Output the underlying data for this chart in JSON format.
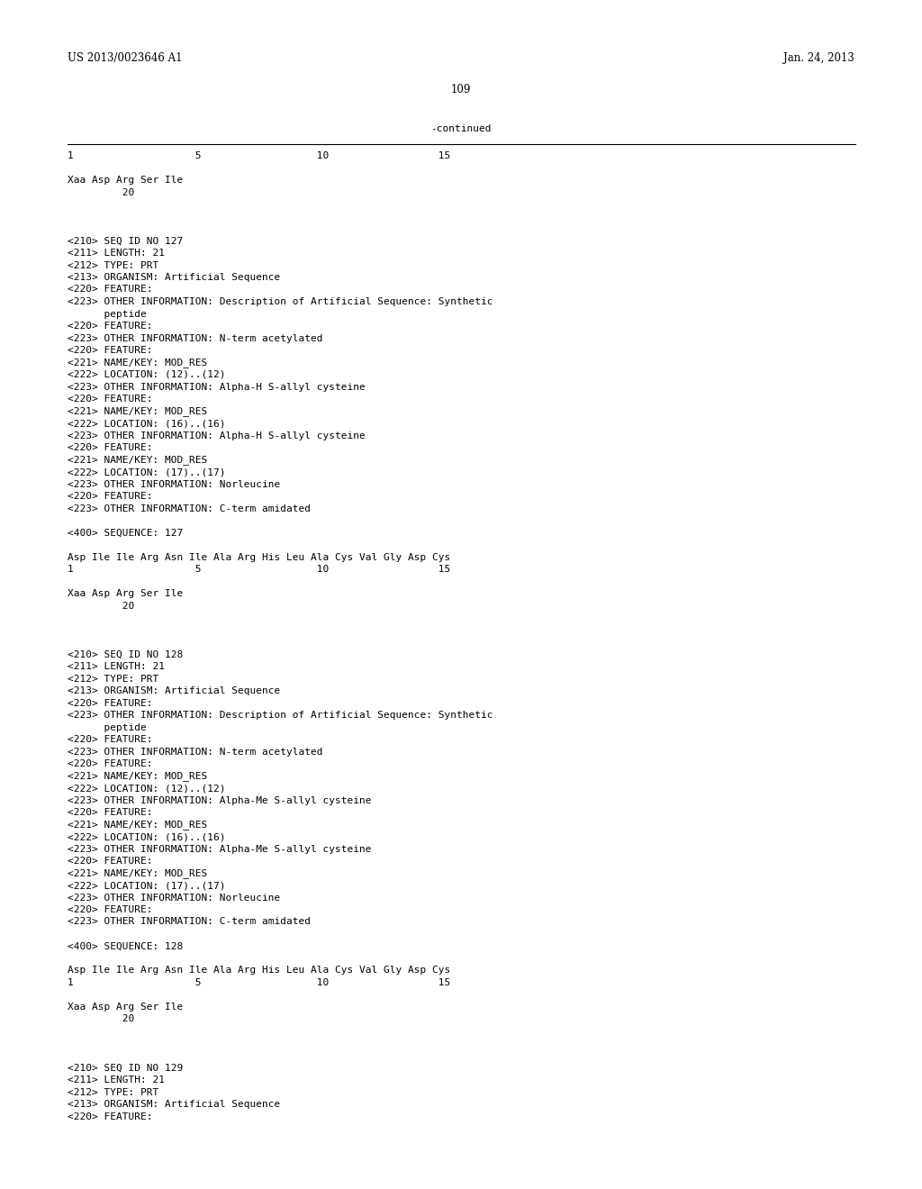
{
  "background_color": "#ffffff",
  "header_left": "US 2013/0023646 A1",
  "header_right": "Jan. 24, 2013",
  "page_number": "109",
  "continued_label": "-continued",
  "font_size": 8.0,
  "monospace_font": "DejaVu Sans Mono",
  "serif_font": "DejaVu Serif",
  "content": [
    {
      "type": "numbering",
      "text": "1                    5                   10                  15"
    },
    {
      "type": "blank"
    },
    {
      "type": "seq_line",
      "text": "Xaa Asp Arg Ser Ile"
    },
    {
      "type": "seq_num",
      "text": "         20"
    },
    {
      "type": "blank"
    },
    {
      "type": "blank"
    },
    {
      "type": "blank"
    },
    {
      "type": "field",
      "text": "<210> SEQ ID NO 127"
    },
    {
      "type": "field",
      "text": "<211> LENGTH: 21"
    },
    {
      "type": "field",
      "text": "<212> TYPE: PRT"
    },
    {
      "type": "field",
      "text": "<213> ORGANISM: Artificial Sequence"
    },
    {
      "type": "field",
      "text": "<220> FEATURE:"
    },
    {
      "type": "field",
      "text": "<223> OTHER INFORMATION: Description of Artificial Sequence: Synthetic"
    },
    {
      "type": "field_indent",
      "text": "      peptide"
    },
    {
      "type": "field",
      "text": "<220> FEATURE:"
    },
    {
      "type": "field",
      "text": "<223> OTHER INFORMATION: N-term acetylated"
    },
    {
      "type": "field",
      "text": "<220> FEATURE:"
    },
    {
      "type": "field",
      "text": "<221> NAME/KEY: MOD_RES"
    },
    {
      "type": "field",
      "text": "<222> LOCATION: (12)..(12)"
    },
    {
      "type": "field",
      "text": "<223> OTHER INFORMATION: Alpha-H S-allyl cysteine"
    },
    {
      "type": "field",
      "text": "<220> FEATURE:"
    },
    {
      "type": "field",
      "text": "<221> NAME/KEY: MOD_RES"
    },
    {
      "type": "field",
      "text": "<222> LOCATION: (16)..(16)"
    },
    {
      "type": "field",
      "text": "<223> OTHER INFORMATION: Alpha-H S-allyl cysteine"
    },
    {
      "type": "field",
      "text": "<220> FEATURE:"
    },
    {
      "type": "field",
      "text": "<221> NAME/KEY: MOD_RES"
    },
    {
      "type": "field",
      "text": "<222> LOCATION: (17)..(17)"
    },
    {
      "type": "field",
      "text": "<223> OTHER INFORMATION: Norleucine"
    },
    {
      "type": "field",
      "text": "<220> FEATURE:"
    },
    {
      "type": "field",
      "text": "<223> OTHER INFORMATION: C-term amidated"
    },
    {
      "type": "blank"
    },
    {
      "type": "field",
      "text": "<400> SEQUENCE: 127"
    },
    {
      "type": "blank"
    },
    {
      "type": "seq_line",
      "text": "Asp Ile Ile Arg Asn Ile Ala Arg His Leu Ala Cys Val Gly Asp Cys"
    },
    {
      "type": "numbering",
      "text": "1                    5                   10                  15"
    },
    {
      "type": "blank"
    },
    {
      "type": "seq_line",
      "text": "Xaa Asp Arg Ser Ile"
    },
    {
      "type": "seq_num",
      "text": "         20"
    },
    {
      "type": "blank"
    },
    {
      "type": "blank"
    },
    {
      "type": "blank"
    },
    {
      "type": "field",
      "text": "<210> SEQ ID NO 128"
    },
    {
      "type": "field",
      "text": "<211> LENGTH: 21"
    },
    {
      "type": "field",
      "text": "<212> TYPE: PRT"
    },
    {
      "type": "field",
      "text": "<213> ORGANISM: Artificial Sequence"
    },
    {
      "type": "field",
      "text": "<220> FEATURE:"
    },
    {
      "type": "field",
      "text": "<223> OTHER INFORMATION: Description of Artificial Sequence: Synthetic"
    },
    {
      "type": "field_indent",
      "text": "      peptide"
    },
    {
      "type": "field",
      "text": "<220> FEATURE:"
    },
    {
      "type": "field",
      "text": "<223> OTHER INFORMATION: N-term acetylated"
    },
    {
      "type": "field",
      "text": "<220> FEATURE:"
    },
    {
      "type": "field",
      "text": "<221> NAME/KEY: MOD_RES"
    },
    {
      "type": "field",
      "text": "<222> LOCATION: (12)..(12)"
    },
    {
      "type": "field",
      "text": "<223> OTHER INFORMATION: Alpha-Me S-allyl cysteine"
    },
    {
      "type": "field",
      "text": "<220> FEATURE:"
    },
    {
      "type": "field",
      "text": "<221> NAME/KEY: MOD_RES"
    },
    {
      "type": "field",
      "text": "<222> LOCATION: (16)..(16)"
    },
    {
      "type": "field",
      "text": "<223> OTHER INFORMATION: Alpha-Me S-allyl cysteine"
    },
    {
      "type": "field",
      "text": "<220> FEATURE:"
    },
    {
      "type": "field",
      "text": "<221> NAME/KEY: MOD_RES"
    },
    {
      "type": "field",
      "text": "<222> LOCATION: (17)..(17)"
    },
    {
      "type": "field",
      "text": "<223> OTHER INFORMATION: Norleucine"
    },
    {
      "type": "field",
      "text": "<220> FEATURE:"
    },
    {
      "type": "field",
      "text": "<223> OTHER INFORMATION: C-term amidated"
    },
    {
      "type": "blank"
    },
    {
      "type": "field",
      "text": "<400> SEQUENCE: 128"
    },
    {
      "type": "blank"
    },
    {
      "type": "seq_line",
      "text": "Asp Ile Ile Arg Asn Ile Ala Arg His Leu Ala Cys Val Gly Asp Cys"
    },
    {
      "type": "numbering",
      "text": "1                    5                   10                  15"
    },
    {
      "type": "blank"
    },
    {
      "type": "seq_line",
      "text": "Xaa Asp Arg Ser Ile"
    },
    {
      "type": "seq_num",
      "text": "         20"
    },
    {
      "type": "blank"
    },
    {
      "type": "blank"
    },
    {
      "type": "blank"
    },
    {
      "type": "field",
      "text": "<210> SEQ ID NO 129"
    },
    {
      "type": "field",
      "text": "<211> LENGTH: 21"
    },
    {
      "type": "field",
      "text": "<212> TYPE: PRT"
    },
    {
      "type": "field",
      "text": "<213> ORGANISM: Artificial Sequence"
    },
    {
      "type": "field",
      "text": "<220> FEATURE:"
    }
  ]
}
